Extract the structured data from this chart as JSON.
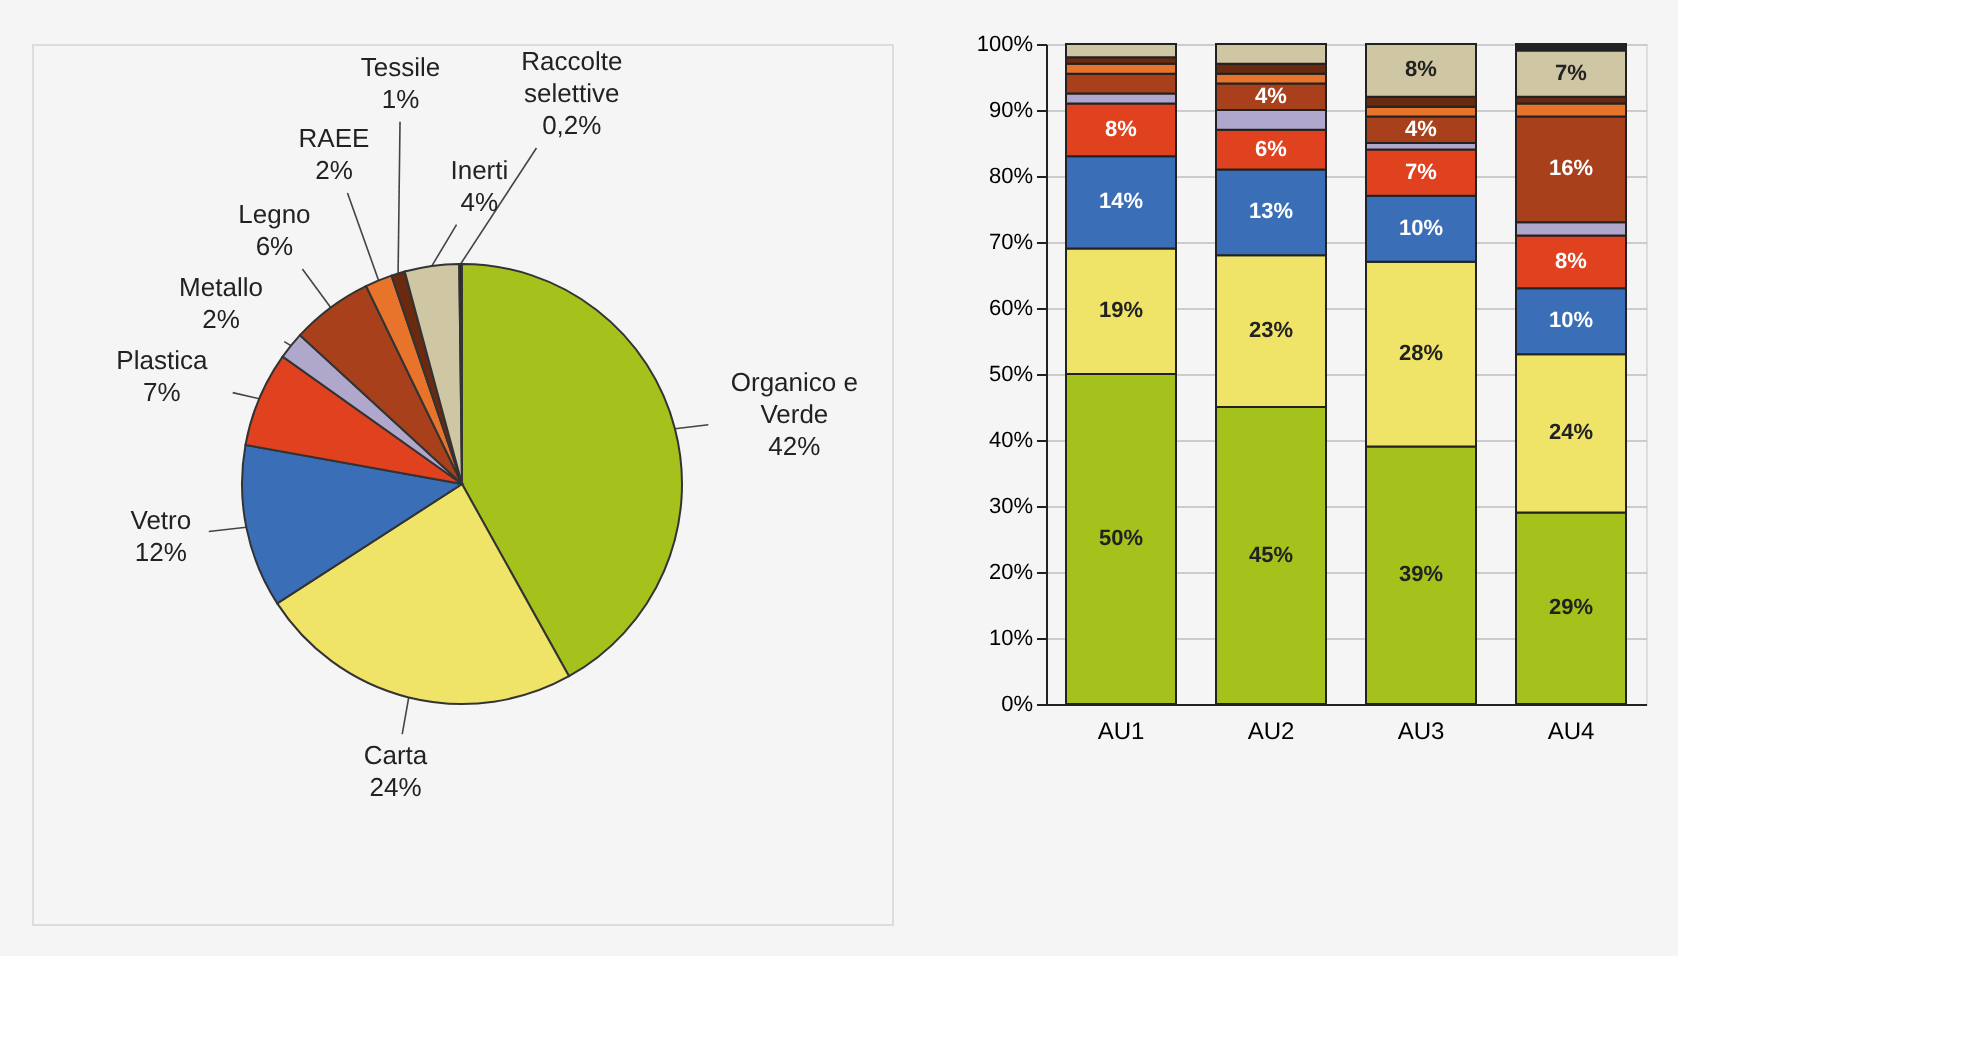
{
  "chart_data": [
    {
      "type": "pie",
      "categories": [
        "Organico e Verde",
        "Carta",
        "Vetro",
        "Plastica",
        "Metallo",
        "Legno",
        "RAEE",
        "Tessile",
        "Inerti",
        "Raccolte selettive"
      ],
      "values": [
        42,
        24,
        12,
        7,
        2,
        6,
        2,
        1,
        4,
        0.2
      ],
      "value_labels": [
        "42%",
        "24%",
        "12%",
        "7%",
        "2%",
        "6%",
        "2%",
        "1%",
        "4%",
        "0,2%"
      ],
      "colors": [
        "#a4c11c",
        "#f0e468",
        "#3a6fb8",
        "#e0411f",
        "#b0a8cc",
        "#a8401c",
        "#e8742c",
        "#6a2a10",
        "#cfc6a4",
        "#222222"
      ]
    },
    {
      "type": "bar",
      "stacked": true,
      "categories": [
        "AU1",
        "AU2",
        "AU3",
        "AU4"
      ],
      "ylim": [
        0,
        100
      ],
      "yticks": [
        {
          "value": 0,
          "label": "0%"
        },
        {
          "value": 10,
          "label": "10%"
        },
        {
          "value": 20,
          "label": "20%"
        },
        {
          "value": 30,
          "label": "30%"
        },
        {
          "value": 40,
          "label": "40%"
        },
        {
          "value": 50,
          "label": "50%"
        },
        {
          "value": 60,
          "label": "60%"
        },
        {
          "value": 70,
          "label": "70%"
        },
        {
          "value": 80,
          "label": "80%"
        },
        {
          "value": 90,
          "label": "90%"
        },
        {
          "value": 100,
          "label": "100%"
        }
      ],
      "grid": "y",
      "series": [
        {
          "color": "#a4c11c",
          "values": [
            50,
            45,
            39,
            29
          ],
          "value_labels": [
            "50%",
            "45%",
            "39%",
            "29%"
          ]
        },
        {
          "color": "#f0e468",
          "values": [
            19,
            23,
            28,
            24
          ],
          "value_labels": [
            "19%",
            "23%",
            "28%",
            "24%"
          ]
        },
        {
          "color": "#3a6fb8",
          "values": [
            14,
            13,
            10,
            10
          ],
          "value_labels": [
            "14%",
            "13%",
            "10%",
            "10%"
          ]
        },
        {
          "color": "#e0411f",
          "values": [
            8,
            6,
            7,
            8
          ],
          "value_labels": [
            "8%",
            "6%",
            "7%",
            "8%"
          ]
        },
        {
          "color": "#b0a8cc",
          "values": [
            1.5,
            3,
            1,
            2
          ],
          "value_labels": [
            null,
            null,
            null,
            null
          ]
        },
        {
          "color": "#a8401c",
          "values": [
            3,
            4,
            4,
            16
          ],
          "value_labels": [
            null,
            "4%",
            "4%",
            "16%"
          ]
        },
        {
          "color": "#e8742c",
          "values": [
            1.5,
            1.5,
            1.5,
            2
          ],
          "value_labels": [
            null,
            null,
            null,
            null
          ]
        },
        {
          "color": "#6a2a10",
          "values": [
            1,
            1.5,
            1.5,
            1
          ],
          "value_labels": [
            null,
            null,
            null,
            null
          ]
        },
        {
          "color": "#cfc6a4",
          "values": [
            2,
            3,
            8,
            7
          ],
          "value_labels": [
            null,
            null,
            "8%",
            "7%"
          ]
        },
        {
          "color": "#222222",
          "values": [
            0,
            0,
            0,
            1
          ],
          "value_labels": [
            null,
            null,
            null,
            null
          ]
        }
      ]
    }
  ]
}
